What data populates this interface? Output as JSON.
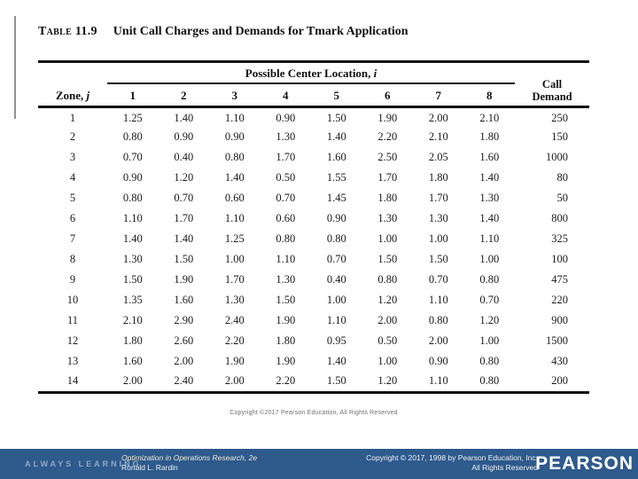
{
  "table": {
    "title_label": "Table 11.9",
    "title_text": "Unit Call Charges and Demands for Tmark Application",
    "header": {
      "zone_label": "Zone, ",
      "zone_var": "j",
      "span_label": "Possible Center Location, ",
      "span_var": "i",
      "call_line1": "Call",
      "call_line2": "Demand",
      "locations": [
        "1",
        "2",
        "3",
        "4",
        "5",
        "6",
        "7",
        "8"
      ]
    },
    "rows": [
      {
        "zone": "1",
        "charges": [
          "1.25",
          "1.40",
          "1.10",
          "0.90",
          "1.50",
          "1.90",
          "2.00",
          "2.10"
        ],
        "demand": "250"
      },
      {
        "zone": "2",
        "charges": [
          "0.80",
          "0.90",
          "0.90",
          "1.30",
          "1.40",
          "2.20",
          "2.10",
          "1.80"
        ],
        "demand": "150"
      },
      {
        "zone": "3",
        "charges": [
          "0.70",
          "0.40",
          "0.80",
          "1.70",
          "1.60",
          "2.50",
          "2.05",
          "1.60"
        ],
        "demand": "1000"
      },
      {
        "zone": "4",
        "charges": [
          "0.90",
          "1.20",
          "1.40",
          "0.50",
          "1.55",
          "1.70",
          "1.80",
          "1.40"
        ],
        "demand": "80"
      },
      {
        "zone": "5",
        "charges": [
          "0.80",
          "0.70",
          "0.60",
          "0.70",
          "1.45",
          "1.80",
          "1.70",
          "1.30"
        ],
        "demand": "50"
      },
      {
        "zone": "6",
        "charges": [
          "1.10",
          "1.70",
          "1.10",
          "0.60",
          "0.90",
          "1.30",
          "1.30",
          "1.40"
        ],
        "demand": "800"
      },
      {
        "zone": "7",
        "charges": [
          "1.40",
          "1.40",
          "1.25",
          "0.80",
          "0.80",
          "1.00",
          "1.00",
          "1.10"
        ],
        "demand": "325"
      },
      {
        "zone": "8",
        "charges": [
          "1.30",
          "1.50",
          "1.00",
          "1.10",
          "0.70",
          "1.50",
          "1.50",
          "1.00"
        ],
        "demand": "100"
      },
      {
        "zone": "9",
        "charges": [
          "1.50",
          "1.90",
          "1.70",
          "1.30",
          "0.40",
          "0.80",
          "0.70",
          "0.80"
        ],
        "demand": "475"
      },
      {
        "zone": "10",
        "charges": [
          "1.35",
          "1.60",
          "1.30",
          "1.50",
          "1.00",
          "1.20",
          "1.10",
          "0.70"
        ],
        "demand": "220"
      },
      {
        "zone": "11",
        "charges": [
          "2.10",
          "2.90",
          "2.40",
          "1.90",
          "1.10",
          "2.00",
          "0.80",
          "1.20"
        ],
        "demand": "900"
      },
      {
        "zone": "12",
        "charges": [
          "1.80",
          "2.60",
          "2.20",
          "1.80",
          "0.95",
          "0.50",
          "2.00",
          "1.00"
        ],
        "demand": "1500"
      },
      {
        "zone": "13",
        "charges": [
          "1.60",
          "2.00",
          "1.90",
          "1.90",
          "1.40",
          "1.00",
          "0.90",
          "0.80"
        ],
        "demand": "430"
      },
      {
        "zone": "14",
        "charges": [
          "2.00",
          "2.40",
          "2.00",
          "2.20",
          "1.50",
          "1.20",
          "1.10",
          "0.80"
        ],
        "demand": "200"
      }
    ],
    "source_copyright": "Copyright ©2017 Pearson Education, All Rights Reserved"
  },
  "footer": {
    "always_learning": "ALWAYS LEARNING",
    "book_title": "Optimization in Operations Research, 2e",
    "book_author": "Ronald L. Rardin",
    "copyright_line1": "Copyright © 2017, 1998 by Pearson Education, Inc.",
    "copyright_line2": "All Rights Reserved",
    "brand": "PEARSON",
    "colors": {
      "bar": "#2e5a8c",
      "always_learning_text": "#93a9c7",
      "footer_text": "#eef2f7",
      "book_title_text": "#f0e9d8"
    }
  }
}
